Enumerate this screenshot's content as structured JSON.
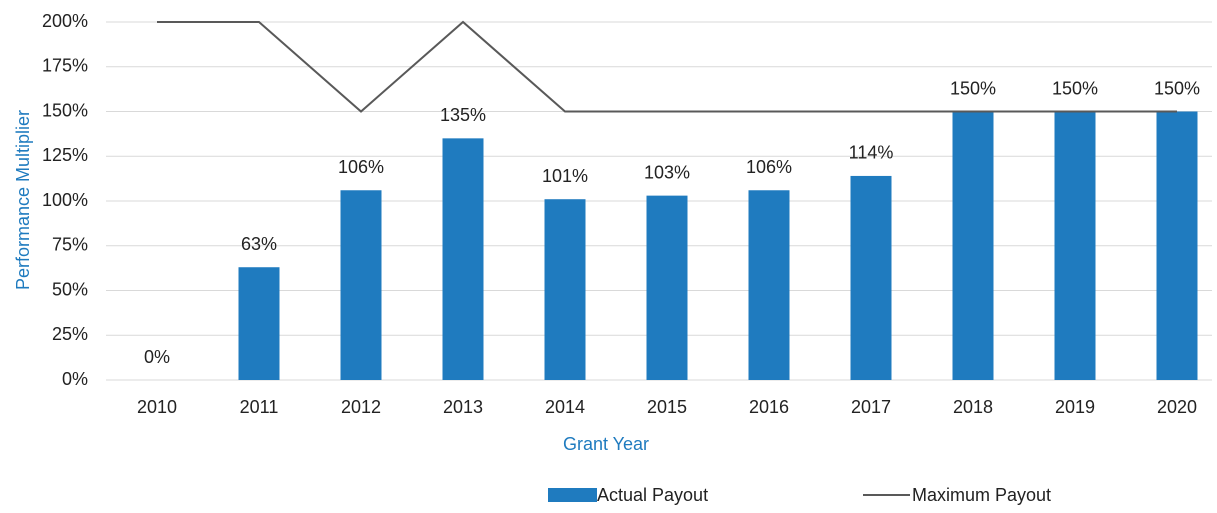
{
  "chart_data": {
    "type": "bar",
    "x_label": "Grant Year",
    "y_label": "Performance Multiplier",
    "categories": [
      "2010",
      "2011",
      "2012",
      "2013",
      "2014",
      "2015",
      "2016",
      "2017",
      "2018",
      "2019",
      "2020"
    ],
    "series": [
      {
        "name": "Actual Payout",
        "type": "bar",
        "color": "#1f7bbf",
        "values": [
          0,
          63,
          106,
          135,
          101,
          103,
          106,
          114,
          150,
          150,
          150
        ],
        "value_labels": [
          "0%",
          "63%",
          "106%",
          "135%",
          "101%",
          "103%",
          "106%",
          "114%",
          "150%",
          "150%",
          "150%"
        ]
      },
      {
        "name": "Maximum Payout",
        "type": "line",
        "color": "#595959",
        "values": [
          200,
          200,
          150,
          200,
          150,
          150,
          150,
          150,
          150,
          150,
          150
        ]
      }
    ],
    "ylim": [
      0,
      200
    ],
    "yticks": [
      {
        "value": 0,
        "label": "0%"
      },
      {
        "value": 25,
        "label": "25%"
      },
      {
        "value": 50,
        "label": "50%"
      },
      {
        "value": 75,
        "label": "75%"
      },
      {
        "value": 100,
        "label": "100%"
      },
      {
        "value": 125,
        "label": "125%"
      },
      {
        "value": 150,
        "label": "150%"
      },
      {
        "value": 175,
        "label": "175%"
      },
      {
        "value": 200,
        "label": "200%"
      }
    ],
    "grid": true
  }
}
